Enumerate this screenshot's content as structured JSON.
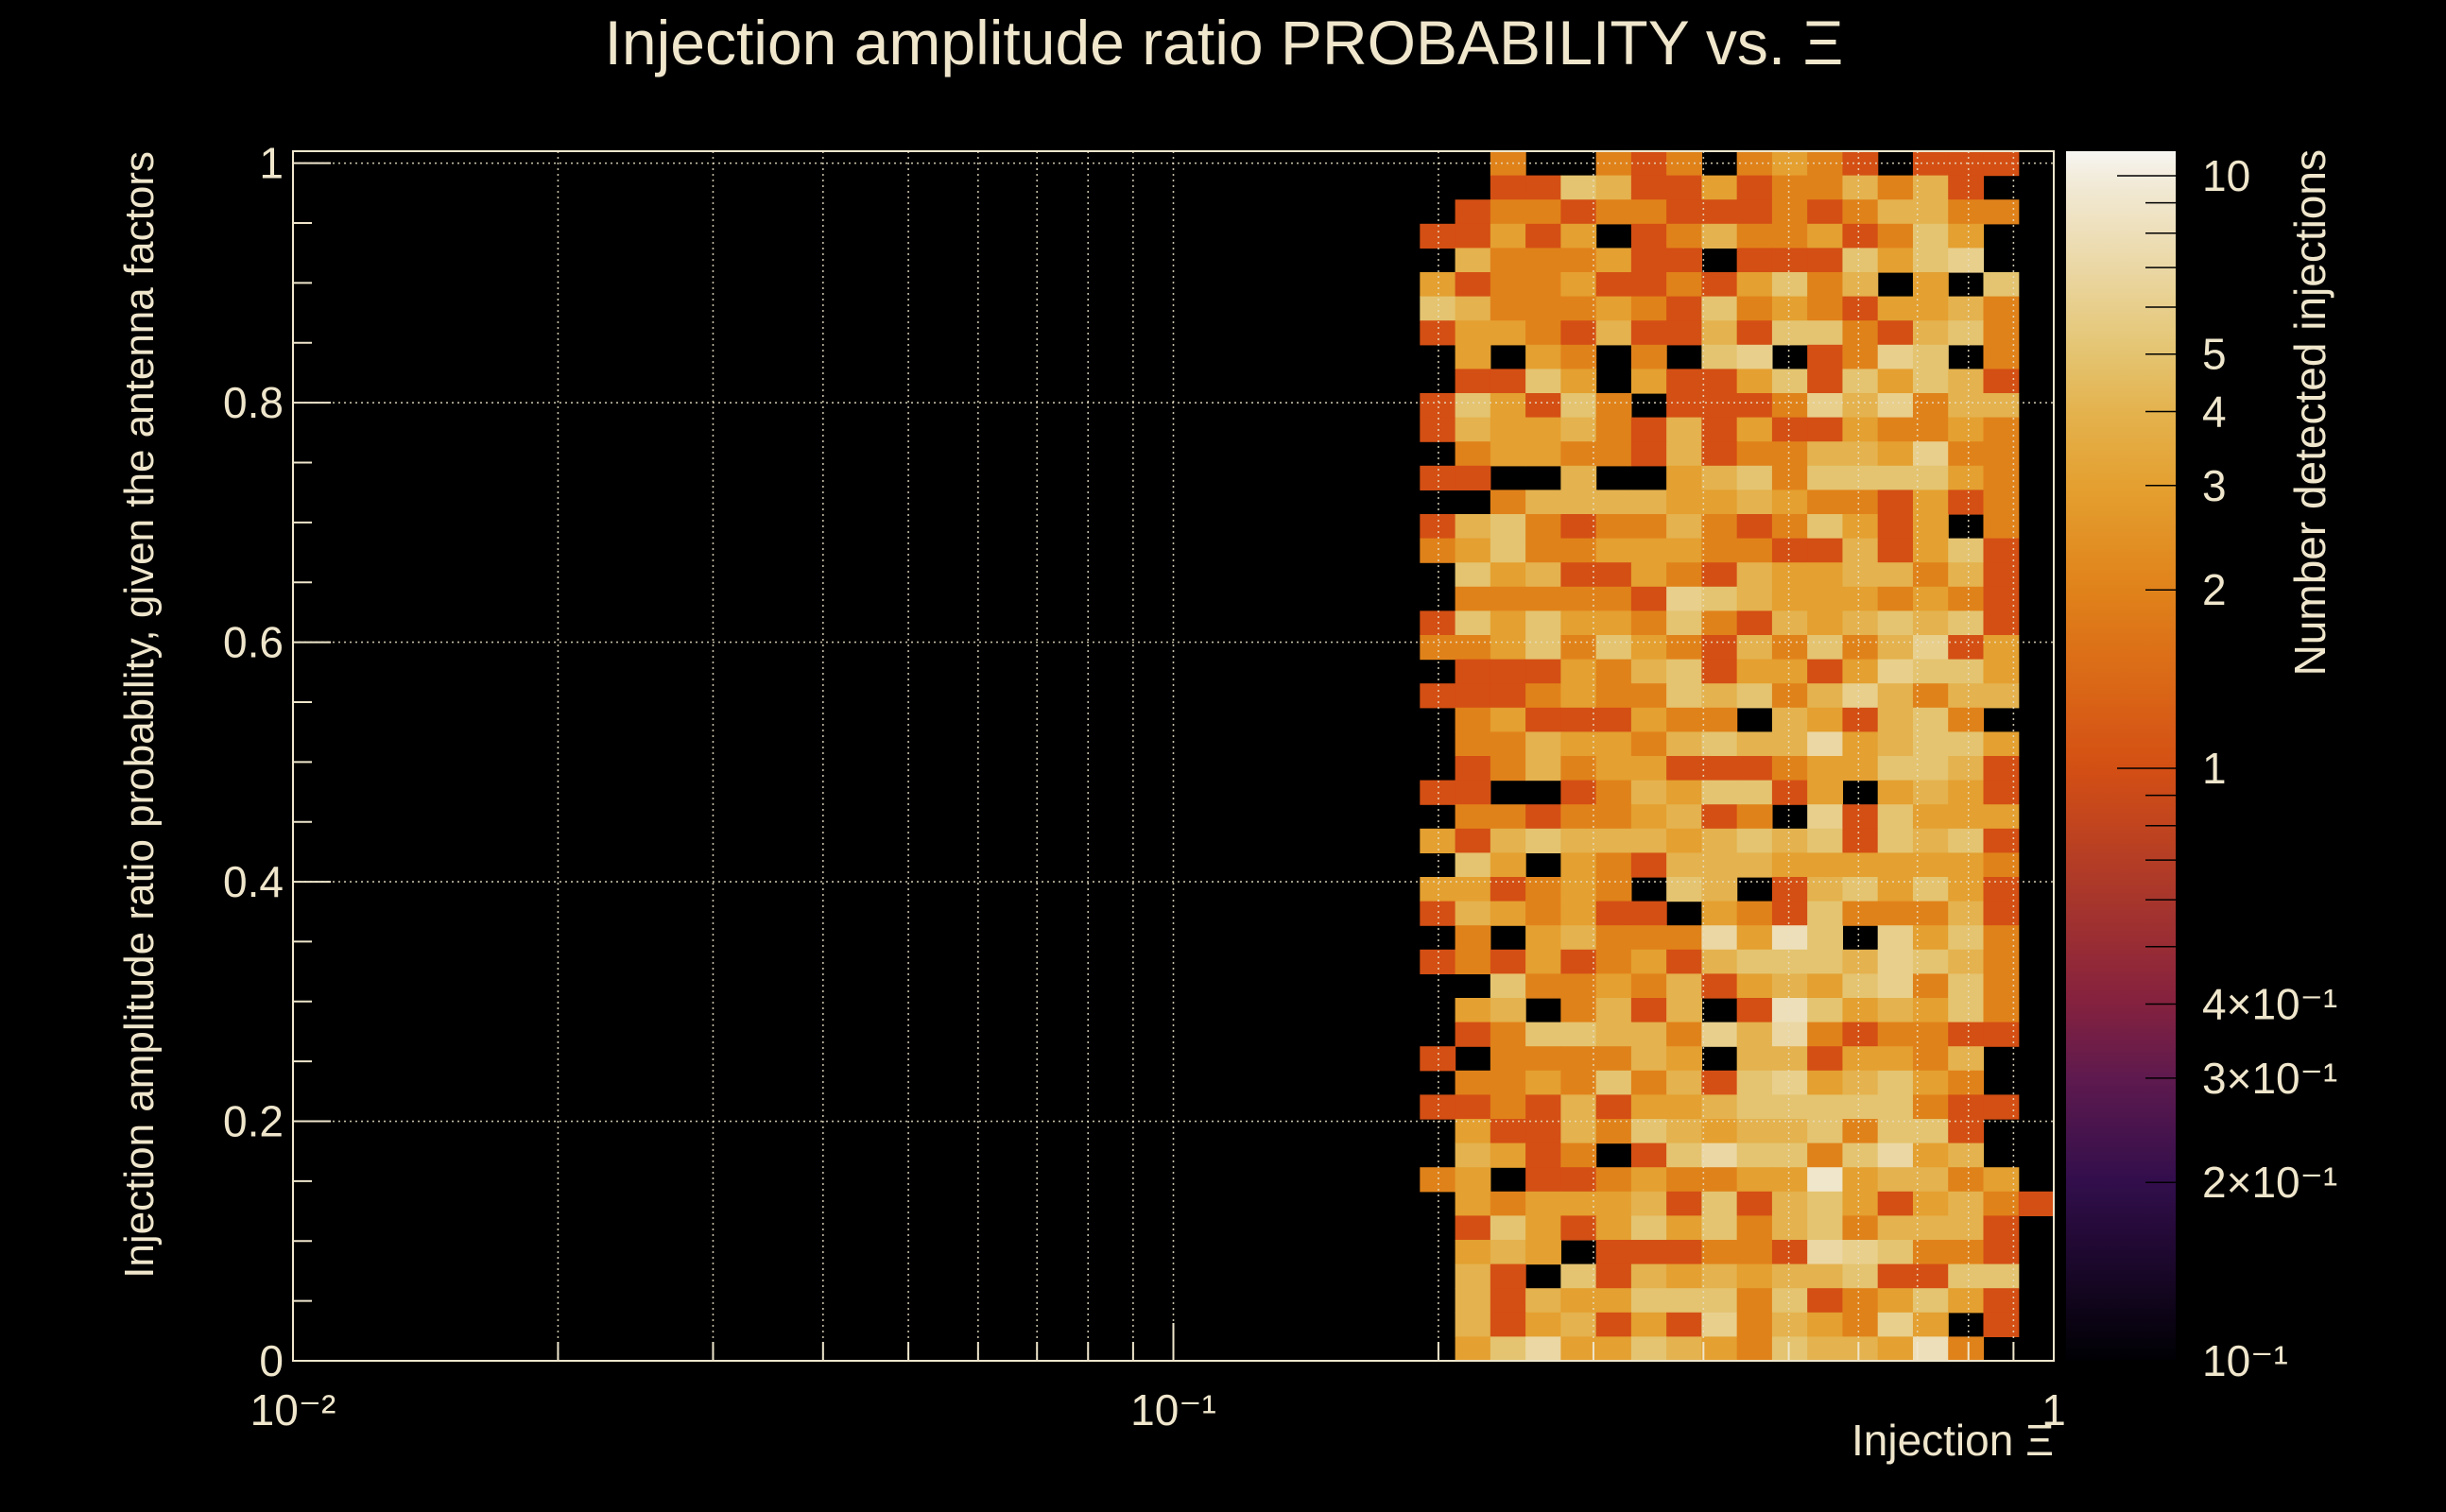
{
  "chart_data": {
    "type": "heatmap",
    "title": "Injection amplitude ratio PROBABILITY vs.  Ξ",
    "xlabel": "Injection Ξ",
    "ylabel": "Injection amplitude ratio probability, given the antenna factors",
    "zlabel": "Number detected injections",
    "x_scale": "log",
    "xlim": [
      0.01,
      1
    ],
    "ylim": [
      0,
      1.01
    ],
    "zlim": [
      0.1,
      11
    ],
    "z_scale": "log",
    "grid": true,
    "x_tick_labels": [
      {
        "value": 0.01,
        "label": "10⁻²"
      },
      {
        "value": 0.1,
        "label": "10⁻¹"
      },
      {
        "value": 1,
        "label": "1"
      }
    ],
    "y_tick_labels": [
      {
        "value": 0,
        "label": "0"
      },
      {
        "value": 0.2,
        "label": "0.2"
      },
      {
        "value": 0.4,
        "label": "0.4"
      },
      {
        "value": 0.6,
        "label": "0.6"
      },
      {
        "value": 0.8,
        "label": "0.8"
      },
      {
        "value": 1,
        "label": "1"
      }
    ],
    "z_tick_labels": [
      {
        "value": 10,
        "label": "10"
      },
      {
        "value": 5,
        "label": "5"
      },
      {
        "value": 4,
        "label": "4"
      },
      {
        "value": 3,
        "label": "3"
      },
      {
        "value": 2,
        "label": "2"
      },
      {
        "value": 1,
        "label": "1"
      },
      {
        "value": 0.4,
        "label": "4×10⁻¹"
      },
      {
        "value": 0.3,
        "label": "3×10⁻¹"
      },
      {
        "value": 0.2,
        "label": "2×10⁻¹"
      },
      {
        "value": 0.1,
        "label": "10⁻¹"
      }
    ],
    "x_bins_log10": {
      "start": -0.72,
      "width": 0.04,
      "count": 18
    },
    "y_bins": {
      "start": 0,
      "width": 0.0202,
      "count": 50
    },
    "rows_order": "top-to-bottom (highest y first)",
    "z": [
      [
        0,
        0,
        2,
        0,
        0,
        2,
        1,
        2,
        0,
        2,
        3,
        2,
        1,
        0,
        1,
        1,
        1,
        0
      ],
      [
        0,
        0,
        1,
        1,
        5,
        4,
        1,
        1,
        3,
        1,
        2,
        2,
        4,
        2,
        4,
        1,
        0,
        0
      ],
      [
        0,
        1,
        2,
        2,
        1,
        2,
        2,
        1,
        1,
        1,
        2,
        1,
        2,
        4,
        4,
        2,
        2,
        0
      ],
      [
        1,
        1,
        3,
        1,
        3,
        0,
        1,
        2,
        4,
        2,
        2,
        3,
        1,
        2,
        5,
        3,
        0,
        0
      ],
      [
        0,
        4,
        2,
        2,
        2,
        3,
        1,
        1,
        0,
        1,
        1,
        1,
        5,
        3,
        5,
        6,
        0,
        0
      ],
      [
        3,
        1,
        2,
        2,
        3,
        1,
        1,
        2,
        1,
        3,
        5,
        2,
        4,
        0,
        3,
        0,
        5,
        0
      ],
      [
        5,
        4,
        2,
        2,
        2,
        3,
        2,
        1,
        5,
        2,
        3,
        2,
        1,
        3,
        3,
        4,
        2,
        0
      ],
      [
        1,
        3,
        3,
        2,
        1,
        4,
        1,
        1,
        4,
        1,
        5,
        5,
        2,
        1,
        4,
        5,
        2,
        0
      ],
      [
        0,
        3,
        0,
        3,
        2,
        0,
        2,
        0,
        5,
        6,
        0,
        1,
        2,
        6,
        5,
        0,
        2,
        0
      ],
      [
        0,
        1,
        1,
        5,
        3,
        0,
        3,
        1,
        1,
        3,
        5,
        1,
        5,
        3,
        5,
        4,
        1,
        0
      ],
      [
        1,
        5,
        3,
        1,
        5,
        2,
        0,
        1,
        1,
        1,
        2,
        6,
        4,
        6,
        2,
        4,
        4,
        0
      ],
      [
        1,
        4,
        3,
        3,
        4,
        2,
        1,
        4,
        1,
        3,
        1,
        1,
        3,
        2,
        2,
        3,
        2,
        0
      ],
      [
        0,
        2,
        3,
        3,
        2,
        2,
        1,
        4,
        1,
        2,
        2,
        4,
        4,
        3,
        6,
        2,
        2,
        0
      ],
      [
        1,
        1,
        0,
        0,
        4,
        0,
        0,
        3,
        4,
        5,
        2,
        5,
        5,
        5,
        5,
        3,
        2,
        0
      ],
      [
        0,
        0,
        2,
        4,
        4,
        4,
        4,
        3,
        3,
        4,
        3,
        2,
        2,
        1,
        3,
        1,
        2,
        0
      ],
      [
        1,
        4,
        5,
        2,
        1,
        2,
        2,
        4,
        2,
        1,
        2,
        5,
        3,
        1,
        3,
        0,
        2,
        0
      ],
      [
        2,
        3,
        5,
        2,
        2,
        3,
        3,
        3,
        2,
        2,
        1,
        1,
        4,
        1,
        3,
        5,
        1,
        0
      ],
      [
        0,
        5,
        3,
        4,
        1,
        1,
        3,
        2,
        1,
        4,
        3,
        3,
        4,
        4,
        2,
        4,
        1,
        0
      ],
      [
        0,
        2,
        2,
        2,
        2,
        2,
        1,
        6,
        5,
        4,
        3,
        3,
        3,
        2,
        3,
        2,
        1,
        0
      ],
      [
        1,
        5,
        3,
        5,
        3,
        3,
        2,
        5,
        2,
        1,
        4,
        3,
        4,
        5,
        4,
        5,
        1,
        0
      ],
      [
        2,
        2,
        3,
        5,
        2,
        5,
        3,
        2,
        1,
        4,
        2,
        5,
        2,
        4,
        6,
        1,
        3,
        0
      ],
      [
        0,
        1,
        1,
        1,
        3,
        2,
        4,
        5,
        1,
        3,
        3,
        1,
        3,
        6,
        5,
        5,
        3,
        0
      ],
      [
        1,
        1,
        1,
        2,
        3,
        2,
        2,
        5,
        4,
        5,
        2,
        4,
        6,
        4,
        2,
        4,
        4,
        0
      ],
      [
        0,
        2,
        3,
        1,
        1,
        1,
        3,
        2,
        2,
        0,
        4,
        3,
        1,
        4,
        5,
        2,
        0,
        0
      ],
      [
        0,
        2,
        2,
        4,
        3,
        3,
        2,
        4,
        5,
        4,
        4,
        7,
        3,
        4,
        5,
        5,
        3,
        0
      ],
      [
        0,
        1,
        2,
        4,
        2,
        3,
        3,
        1,
        1,
        1,
        2,
        3,
        3,
        5,
        5,
        4,
        1,
        0
      ],
      [
        1,
        1,
        0,
        0,
        1,
        2,
        4,
        3,
        5,
        5,
        1,
        3,
        0,
        3,
        4,
        3,
        1,
        0
      ],
      [
        0,
        2,
        2,
        1,
        2,
        2,
        3,
        4,
        1,
        2,
        0,
        6,
        1,
        5,
        3,
        3,
        3,
        0
      ],
      [
        3,
        1,
        4,
        5,
        4,
        4,
        4,
        3,
        4,
        5,
        4,
        5,
        1,
        5,
        4,
        5,
        1,
        0
      ],
      [
        0,
        5,
        3,
        0,
        3,
        2,
        1,
        4,
        4,
        4,
        3,
        3,
        3,
        3,
        3,
        3,
        2,
        0
      ],
      [
        3,
        3,
        1,
        2,
        3,
        2,
        0,
        5,
        4,
        0,
        1,
        4,
        5,
        3,
        5,
        3,
        1,
        0
      ],
      [
        1,
        4,
        3,
        2,
        3,
        1,
        1,
        0,
        3,
        2,
        1,
        5,
        2,
        2,
        2,
        4,
        1,
        0
      ],
      [
        0,
        2,
        0,
        3,
        4,
        2,
        2,
        2,
        7,
        3,
        8,
        5,
        0,
        6,
        3,
        5,
        2,
        0
      ],
      [
        1,
        2,
        1,
        3,
        1,
        2,
        3,
        1,
        4,
        5,
        5,
        5,
        4,
        6,
        5,
        4,
        2,
        0
      ],
      [
        0,
        0,
        5,
        2,
        2,
        3,
        2,
        4,
        1,
        3,
        4,
        3,
        5,
        6,
        2,
        5,
        2,
        0
      ],
      [
        0,
        3,
        4,
        0,
        2,
        4,
        1,
        4,
        0,
        1,
        8,
        5,
        3,
        4,
        3,
        5,
        2,
        0
      ],
      [
        0,
        1,
        2,
        5,
        5,
        4,
        4,
        2,
        6,
        4,
        7,
        2,
        1,
        2,
        2,
        1,
        1,
        0
      ],
      [
        1,
        0,
        2,
        2,
        2,
        2,
        4,
        3,
        0,
        4,
        4,
        1,
        3,
        3,
        2,
        4,
        0,
        0
      ],
      [
        0,
        2,
        2,
        3,
        2,
        5,
        2,
        4,
        1,
        5,
        6,
        3,
        4,
        5,
        3,
        2,
        0,
        0
      ],
      [
        1,
        1,
        2,
        1,
        4,
        1,
        3,
        3,
        4,
        5,
        5,
        5,
        5,
        5,
        2,
        1,
        1,
        0
      ],
      [
        0,
        3,
        1,
        1,
        4,
        2,
        5,
        4,
        3,
        4,
        4,
        5,
        2,
        5,
        5,
        1,
        0,
        0
      ],
      [
        0,
        4,
        3,
        1,
        2,
        0,
        1,
        5,
        7,
        5,
        5,
        2,
        5,
        7,
        3,
        4,
        0,
        0
      ],
      [
        2,
        3,
        0,
        1,
        1,
        2,
        3,
        2,
        2,
        3,
        3,
        9,
        3,
        4,
        4,
        2,
        3,
        0
      ],
      [
        0,
        3,
        2,
        3,
        3,
        3,
        4,
        1,
        5,
        1,
        4,
        5,
        3,
        1,
        3,
        4,
        2,
        1
      ],
      [
        0,
        1,
        5,
        3,
        1,
        3,
        5,
        3,
        5,
        2,
        4,
        5,
        2,
        4,
        4,
        4,
        1,
        0
      ],
      [
        0,
        3,
        4,
        3,
        0,
        1,
        1,
        1,
        2,
        2,
        1,
        7,
        6,
        5,
        2,
        2,
        1,
        0
      ],
      [
        0,
        4,
        1,
        0,
        5,
        1,
        4,
        3,
        4,
        3,
        4,
        4,
        5,
        1,
        1,
        5,
        5,
        0
      ],
      [
        0,
        4,
        1,
        4,
        3,
        3,
        5,
        5,
        5,
        2,
        5,
        1,
        2,
        3,
        5,
        3,
        1,
        0
      ],
      [
        0,
        4,
        1,
        3,
        4,
        1,
        3,
        1,
        6,
        2,
        4,
        3,
        2,
        6,
        3,
        0,
        1,
        0
      ],
      [
        0,
        3,
        5,
        7,
        3,
        3,
        5,
        4,
        3,
        2,
        5,
        4,
        4,
        3,
        8,
        2,
        0,
        0
      ]
    ],
    "colormap": [
      {
        "value": 0.1,
        "color": "#000004"
      },
      {
        "value": 0.2,
        "color": "#320e4c"
      },
      {
        "value": 0.3,
        "color": "#5e1a4e"
      },
      {
        "value": 0.4,
        "color": "#84213f"
      },
      {
        "value": 1,
        "color": "#d44f14"
      },
      {
        "value": 2,
        "color": "#e0821a"
      },
      {
        "value": 3,
        "color": "#e4a030"
      },
      {
        "value": 4,
        "color": "#e4b24e"
      },
      {
        "value": 5,
        "color": "#e4c470"
      },
      {
        "value": 10,
        "color": "#f2ecdc"
      },
      {
        "value": 11,
        "color": "#f7f6f2"
      }
    ]
  }
}
